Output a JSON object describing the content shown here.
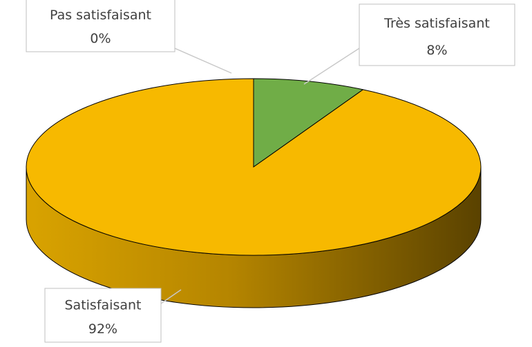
{
  "chart_data": {
    "type": "pie3d",
    "categories": [
      "Pas satisfaisant",
      "Très satisfaisant",
      "Satisfaisant"
    ],
    "values": [
      0,
      8,
      92
    ],
    "value_labels": [
      "0%",
      "8%",
      "92%"
    ],
    "colors": [
      "#4472c4",
      "#70ad47",
      "#f7b900"
    ]
  }
}
